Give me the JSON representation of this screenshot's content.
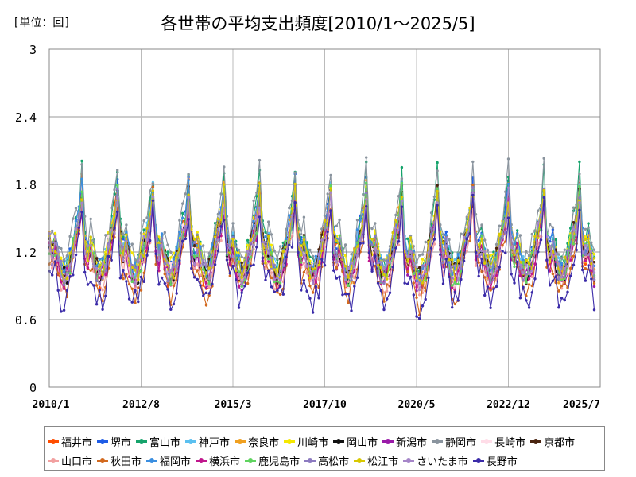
{
  "header": {
    "unit": "[単位：回]",
    "title": "各世帯の平均支出頻度[2010/1～2025/5]"
  },
  "chart_data": {
    "type": "line",
    "x_tick_labels": [
      "2010/1",
      "2012/8",
      "2015/3",
      "2017/10",
      "2020/5",
      "2022/12",
      "2025/7"
    ],
    "x_ticks_months": [
      0,
      31,
      62,
      93,
      124,
      155,
      186
    ],
    "y_ticks": [
      "0",
      "0.6",
      "1.2",
      "1.8",
      "2.4",
      "3"
    ],
    "ylim": [
      0,
      3
    ],
    "grid": true,
    "legend_position": "bottom",
    "n_points": 185,
    "series": [
      {
        "name": "福井市",
        "color": "#ff4d00",
        "base": 1.25,
        "amp": 0.48,
        "noise": 0.12
      },
      {
        "name": "堺市",
        "color": "#1e5ce6",
        "base": 1.3,
        "amp": 0.45,
        "noise": 0.1
      },
      {
        "name": "富山市",
        "color": "#15a36b",
        "base": 1.33,
        "amp": 0.5,
        "noise": 0.13
      },
      {
        "name": "神戸市",
        "color": "#5bc0f0",
        "base": 1.28,
        "amp": 0.4,
        "noise": 0.1
      },
      {
        "name": "奈良市",
        "color": "#f0a020",
        "base": 1.26,
        "amp": 0.44,
        "noise": 0.11
      },
      {
        "name": "川崎市",
        "color": "#f5e800",
        "base": 1.3,
        "amp": 0.38,
        "noise": 0.1
      },
      {
        "name": "岡山市",
        "color": "#111111",
        "base": 1.22,
        "amp": 0.4,
        "noise": 0.09
      },
      {
        "name": "新潟市",
        "color": "#9a1aa8",
        "base": 1.2,
        "amp": 0.42,
        "noise": 0.1
      },
      {
        "name": "静岡市",
        "color": "#8a949e",
        "base": 1.4,
        "amp": 0.48,
        "noise": 0.12
      },
      {
        "name": "長崎市",
        "color": "#ffdde8",
        "base": 1.22,
        "amp": 0.38,
        "noise": 0.12
      },
      {
        "name": "京都市",
        "color": "#4a2410",
        "base": 1.26,
        "amp": 0.4,
        "noise": 0.1
      },
      {
        "name": "山口市",
        "color": "#f2a0a0",
        "base": 1.15,
        "amp": 0.4,
        "noise": 0.1
      },
      {
        "name": "秋田市",
        "color": "#d2691e",
        "base": 1.12,
        "amp": 0.52,
        "noise": 0.12
      },
      {
        "name": "福岡市",
        "color": "#3a8ee0",
        "base": 1.3,
        "amp": 0.42,
        "noise": 0.1
      },
      {
        "name": "横浜市",
        "color": "#c0168c",
        "base": 1.18,
        "amp": 0.4,
        "noise": 0.1
      },
      {
        "name": "鹿児島市",
        "color": "#5fd35f",
        "base": 1.24,
        "amp": 0.44,
        "noise": 0.11
      },
      {
        "name": "高松市",
        "color": "#8c7ac0",
        "base": 1.25,
        "amp": 0.42,
        "noise": 0.1
      },
      {
        "name": "松江市",
        "color": "#d8c800",
        "base": 1.27,
        "amp": 0.42,
        "noise": 0.11
      },
      {
        "name": "さいたま市",
        "color": "#a585c8",
        "base": 1.24,
        "amp": 0.4,
        "noise": 0.1
      },
      {
        "name": "長野市",
        "color": "#3a2aa8",
        "base": 1.05,
        "amp": 0.5,
        "noise": 0.12
      }
    ]
  }
}
